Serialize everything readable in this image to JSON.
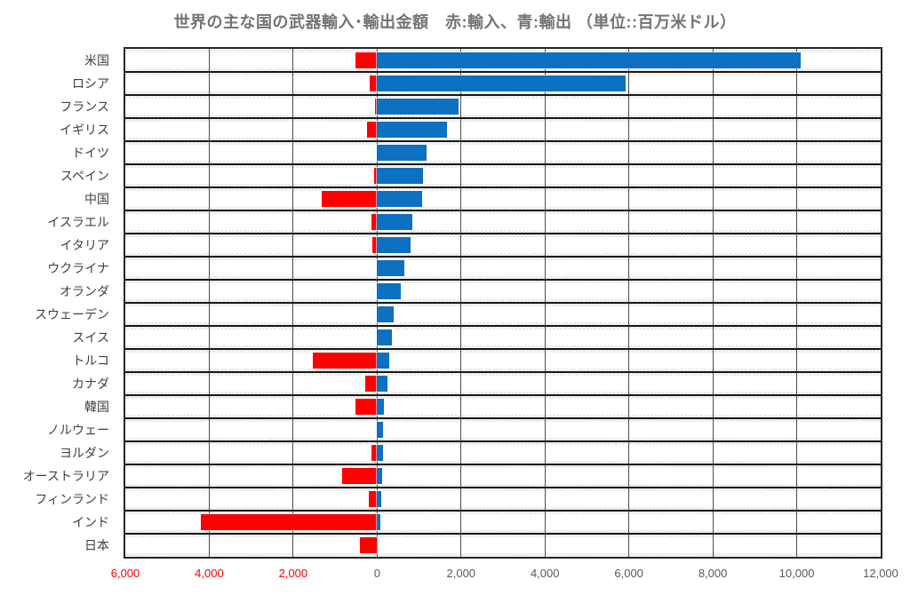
{
  "colors": {
    "import_red": "#fe0000",
    "export_blue": "#0d70c0",
    "title_gray": "#737373",
    "category_label": "#404040",
    "axis_label_gray": "#595959",
    "negative_axis_label": "#fe0000",
    "gridline": "#4d4d4d",
    "row_separator": "#171717",
    "plot_border": "#262626",
    "row_band_white": "#ffffff"
  },
  "chart_data": {
    "type": "bar",
    "orientation": "horizontal",
    "title": "世界の主な国の武器輸入･輸出金額　赤:輸入、青:輸出 （単位::百万米ドル）",
    "unit": "百万米ドル",
    "legend_note": "赤:輸入、青:輸出",
    "grid": true,
    "categories": [
      "米国",
      "ロシア",
      "フランス",
      "イギリス",
      "ドイツ",
      "スペイン",
      "中国",
      "イスラエル",
      "イタリア",
      "ウクライナ",
      "オランダ",
      "スウェーデン",
      "スイス",
      "トルコ",
      "カナダ",
      "韓国",
      "ノルウェー",
      "ヨルダン",
      "オーストラリア",
      "フィンランド",
      "インド",
      "日本"
    ],
    "series": [
      {
        "name": "輸入",
        "direction": "left",
        "color": "#fe0000",
        "values": [
          510,
          170,
          40,
          230,
          0,
          70,
          1310,
          130,
          120,
          0,
          0,
          0,
          0,
          1530,
          290,
          520,
          0,
          130,
          840,
          190,
          4200,
          400
        ]
      },
      {
        "name": "輸出",
        "direction": "right",
        "color": "#0d70c0",
        "values": [
          10100,
          5930,
          1950,
          1670,
          1180,
          1100,
          1080,
          830,
          790,
          650,
          560,
          400,
          350,
          280,
          250,
          170,
          145,
          135,
          115,
          90,
          85,
          0
        ]
      }
    ],
    "x_axis": {
      "min": -6000,
      "max": 12000,
      "tick_step": 2000,
      "negative_label_color": "#fe0000",
      "positive_label_color": "#595959",
      "ticks": [
        {
          "label": "6,000",
          "value": -6000
        },
        {
          "label": "4,000",
          "value": -4000
        },
        {
          "label": "2,000",
          "value": -2000
        },
        {
          "label": "0",
          "value": 0
        },
        {
          "label": "2,000",
          "value": 2000
        },
        {
          "label": "4,000",
          "value": 4000
        },
        {
          "label": "6,000",
          "value": 6000
        },
        {
          "label": "8,000",
          "value": 8000
        },
        {
          "label": "10,000",
          "value": 10000
        },
        {
          "label": "12,000",
          "value": 12000
        }
      ]
    }
  }
}
